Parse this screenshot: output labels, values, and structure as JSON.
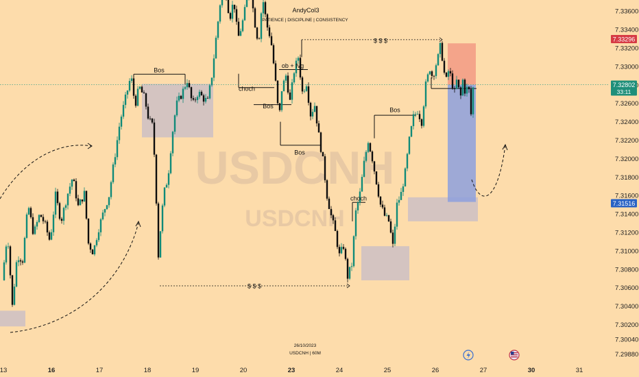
{
  "chart_data": {
    "type": "candlestick",
    "symbol_watermark": "USDCNH",
    "watermark_line2": "USDCNH",
    "author": "AndyCol3",
    "motto": "PATIENCE | DISCIPLINE | CONSISTENCY",
    "footer_date": "26/10/2023",
    "footer_symbol": "USDCNH | 60M",
    "y_range": [
      7.2978,
      7.3372
    ],
    "y_ticks": [
      "7.33600",
      "7.33400",
      "7.33200",
      "7.33000",
      "7.32800",
      "7.32600",
      "7.32400",
      "7.32200",
      "7.32000",
      "7.31800",
      "7.31600",
      "7.31400",
      "7.31200",
      "7.31000",
      "7.30800",
      "7.30600",
      "7.30400",
      "7.30200",
      "7.30040",
      "7.29880"
    ],
    "x_ticks": [
      {
        "label": "13",
        "bold": false,
        "t": 0
      },
      {
        "label": "16",
        "bold": true,
        "t": 70
      },
      {
        "label": "17",
        "bold": false,
        "t": 140
      },
      {
        "label": "18",
        "bold": false,
        "t": 210
      },
      {
        "label": "19",
        "bold": false,
        "t": 280
      },
      {
        "label": "20",
        "bold": false,
        "t": 350
      },
      {
        "label": "23",
        "bold": true,
        "t": 420
      },
      {
        "label": "24",
        "bold": false,
        "t": 490
      },
      {
        "label": "25",
        "bold": false,
        "t": 560
      },
      {
        "label": "26",
        "bold": false,
        "t": 630
      },
      {
        "label": "27",
        "bold": false,
        "t": 700
      },
      {
        "label": "30",
        "bold": true,
        "t": 770
      },
      {
        "label": "31",
        "bold": false,
        "t": 840
      }
    ],
    "price_badges": [
      {
        "label": "7.33296",
        "value": 7.33296,
        "color": "#d63a44"
      },
      {
        "label": "7.32802",
        "value": 7.32802,
        "color": "#1f8f7a",
        "sub": "33:11"
      },
      {
        "label": "7.31516",
        "value": 7.31516,
        "color": "#2962c4"
      }
    ],
    "current_price": 7.32802,
    "path": [
      [
        0,
        7.3068
      ],
      [
        8,
        7.312
      ],
      [
        15,
        7.304
      ],
      [
        22,
        7.3095
      ],
      [
        30,
        7.309
      ],
      [
        38,
        7.315
      ],
      [
        46,
        7.3118
      ],
      [
        55,
        7.314
      ],
      [
        62,
        7.313
      ],
      [
        70,
        7.311
      ],
      [
        78,
        7.316
      ],
      [
        86,
        7.3132
      ],
      [
        95,
        7.316
      ],
      [
        103,
        7.318
      ],
      [
        111,
        7.3148
      ],
      [
        120,
        7.3162
      ],
      [
        126,
        7.3108
      ],
      [
        133,
        7.3098
      ],
      [
        140,
        7.3122
      ],
      [
        148,
        7.3142
      ],
      [
        156,
        7.316
      ],
      [
        165,
        7.3205
      ],
      [
        172,
        7.324
      ],
      [
        180,
        7.3265
      ],
      [
        188,
        7.329
      ],
      [
        194,
        7.3258
      ],
      [
        200,
        7.3278
      ],
      [
        208,
        7.3265
      ],
      [
        214,
        7.3242
      ],
      [
        220,
        7.3235
      ],
      [
        224,
        7.3175
      ],
      [
        228,
        7.3095
      ],
      [
        232,
        7.3132
      ],
      [
        236,
        7.3162
      ],
      [
        242,
        7.318
      ],
      [
        248,
        7.3225
      ],
      [
        254,
        7.3258
      ],
      [
        262,
        7.327
      ],
      [
        270,
        7.3285
      ],
      [
        278,
        7.3258
      ],
      [
        286,
        7.3272
      ],
      [
        294,
        7.3265
      ],
      [
        300,
        7.3262
      ],
      [
        306,
        7.329
      ],
      [
        312,
        7.333
      ],
      [
        318,
        7.3368
      ],
      [
        325,
        7.3388
      ],
      [
        332,
        7.3352
      ],
      [
        338,
        7.3372
      ],
      [
        344,
        7.333
      ],
      [
        350,
        7.3345
      ],
      [
        356,
        7.3368
      ],
      [
        362,
        7.3388
      ],
      [
        368,
        7.335
      ],
      [
        374,
        7.3325
      ],
      [
        380,
        7.3375
      ],
      [
        386,
        7.3345
      ],
      [
        392,
        7.333
      ],
      [
        398,
        7.329
      ],
      [
        404,
        7.3242
      ],
      [
        408,
        7.3275
      ],
      [
        414,
        7.329
      ],
      [
        420,
        7.3262
      ],
      [
        426,
        7.3295
      ],
      [
        432,
        7.331
      ],
      [
        438,
        7.3272
      ],
      [
        444,
        7.3282
      ],
      [
        450,
        7.3248
      ],
      [
        456,
        7.3258
      ],
      [
        462,
        7.3225
      ],
      [
        468,
        7.3198
      ],
      [
        474,
        7.316
      ],
      [
        480,
        7.3138
      ],
      [
        486,
        7.312
      ],
      [
        492,
        7.3095
      ],
      [
        498,
        7.3105
      ],
      [
        504,
        7.3072
      ],
      [
        510,
        7.3085
      ],
      [
        516,
        7.3142
      ],
      [
        522,
        7.3162
      ],
      [
        528,
        7.3195
      ],
      [
        534,
        7.322
      ],
      [
        540,
        7.32
      ],
      [
        546,
        7.3175
      ],
      [
        552,
        7.315
      ],
      [
        558,
        7.3138
      ],
      [
        564,
        7.3132
      ],
      [
        570,
        7.3105
      ],
      [
        576,
        7.315
      ],
      [
        582,
        7.3162
      ],
      [
        588,
        7.3185
      ],
      [
        594,
        7.322
      ],
      [
        600,
        7.3245
      ],
      [
        606,
        7.3252
      ],
      [
        612,
        7.324
      ],
      [
        618,
        7.328
      ],
      [
        624,
        7.3298
      ],
      [
        628,
        7.3288
      ],
      [
        632,
        7.33
      ],
      [
        636,
        7.331
      ],
      [
        640,
        7.3325
      ],
      [
        644,
        7.3295
      ],
      [
        648,
        7.3285
      ],
      [
        652,
        7.3298
      ],
      [
        656,
        7.3282
      ],
      [
        660,
        7.3272
      ],
      [
        664,
        7.3288
      ],
      [
        668,
        7.3262
      ],
      [
        672,
        7.3285
      ],
      [
        676,
        7.327
      ],
      [
        680,
        7.3282
      ],
      [
        684,
        7.3248
      ]
    ],
    "zones": [
      {
        "name": "zone-left",
        "t1": -5,
        "t2": 32,
        "p1": 7.3018,
        "p2": 7.3035,
        "color": "#cdbfc4"
      },
      {
        "name": "zone-ob-19",
        "t1": 202,
        "t2": 306,
        "p1": 7.3223,
        "p2": 7.3281,
        "color": "#cdbfc4"
      },
      {
        "name": "zone-24",
        "t1": 522,
        "t2": 592,
        "p1": 7.3068,
        "p2": 7.3105,
        "color": "#cdbfc4"
      },
      {
        "name": "zone-26",
        "t1": 590,
        "t2": 692,
        "p1": 7.3132,
        "p2": 7.3158,
        "color": "#cdbfc4"
      },
      {
        "name": "stop-zone",
        "t1": 648,
        "t2": 689,
        "p1": 7.328,
        "p2": 7.3325,
        "color": "#f29a84"
      },
      {
        "name": "target-zone",
        "t1": 648,
        "t2": 689,
        "p1": 7.3153,
        "p2": 7.328,
        "color": "#8da0dd"
      }
    ],
    "annotations": [
      {
        "text": "Bos",
        "t": 227,
        "p": 7.32935
      },
      {
        "text": "choch",
        "t": 355,
        "p": 7.32735
      },
      {
        "text": "Bos",
        "t": 386,
        "p": 7.32545
      },
      {
        "text": "ob + fvg",
        "t": 422,
        "p": 7.32985
      },
      {
        "text": "$ $ $",
        "t": 550,
        "p": 7.33255
      },
      {
        "text": "Bos",
        "t": 432,
        "p": 7.32045
      },
      {
        "text": "Bos",
        "t": 571,
        "p": 7.32505
      },
      {
        "text": "choch",
        "t": 518,
        "p": 7.31545
      },
      {
        "text": "$ $ $",
        "t": 366,
        "p": 7.30595
      }
    ],
    "level_lines": [
      {
        "name": "bos-line-1",
        "t1": 190,
        "t2": 265,
        "p": 7.32915,
        "dotted": false
      },
      {
        "name": "choch-line-1",
        "t1": 343,
        "t2": 395,
        "p": 7.3277,
        "dotted": false
      },
      {
        "name": "bos-line-2",
        "t1": 365,
        "t2": 420,
        "p": 7.32585,
        "dotted": false
      },
      {
        "name": "obfvg-line",
        "t1": 402,
        "t2": 444,
        "p": 7.32965,
        "dotted": false
      },
      {
        "name": "bos-line-3",
        "t1": 404,
        "t2": 462,
        "p": 7.32145,
        "dotted": false
      },
      {
        "name": "bos-line-4",
        "t1": 541,
        "t2": 602,
        "p": 7.3247,
        "dotted": false
      },
      {
        "name": "choch-line-2",
        "t1": 509,
        "t2": 528,
        "p": 7.31525,
        "dotted": false
      },
      {
        "name": "entry-line",
        "t1": 624,
        "t2": 690,
        "p": 7.3276,
        "dotted": false
      },
      {
        "name": "liquidity-top",
        "t1": 435,
        "t2": 640,
        "p": 7.3329,
        "dotted": true
      },
      {
        "name": "liquidity-bottom",
        "t1": 228,
        "t2": 505,
        "p": 7.3062,
        "dotted": true
      }
    ],
    "colors": {
      "up": "#0f8a79",
      "down": "#0d0d0d",
      "background": "#fddcab",
      "price_line": "#3ea18a"
    }
  }
}
